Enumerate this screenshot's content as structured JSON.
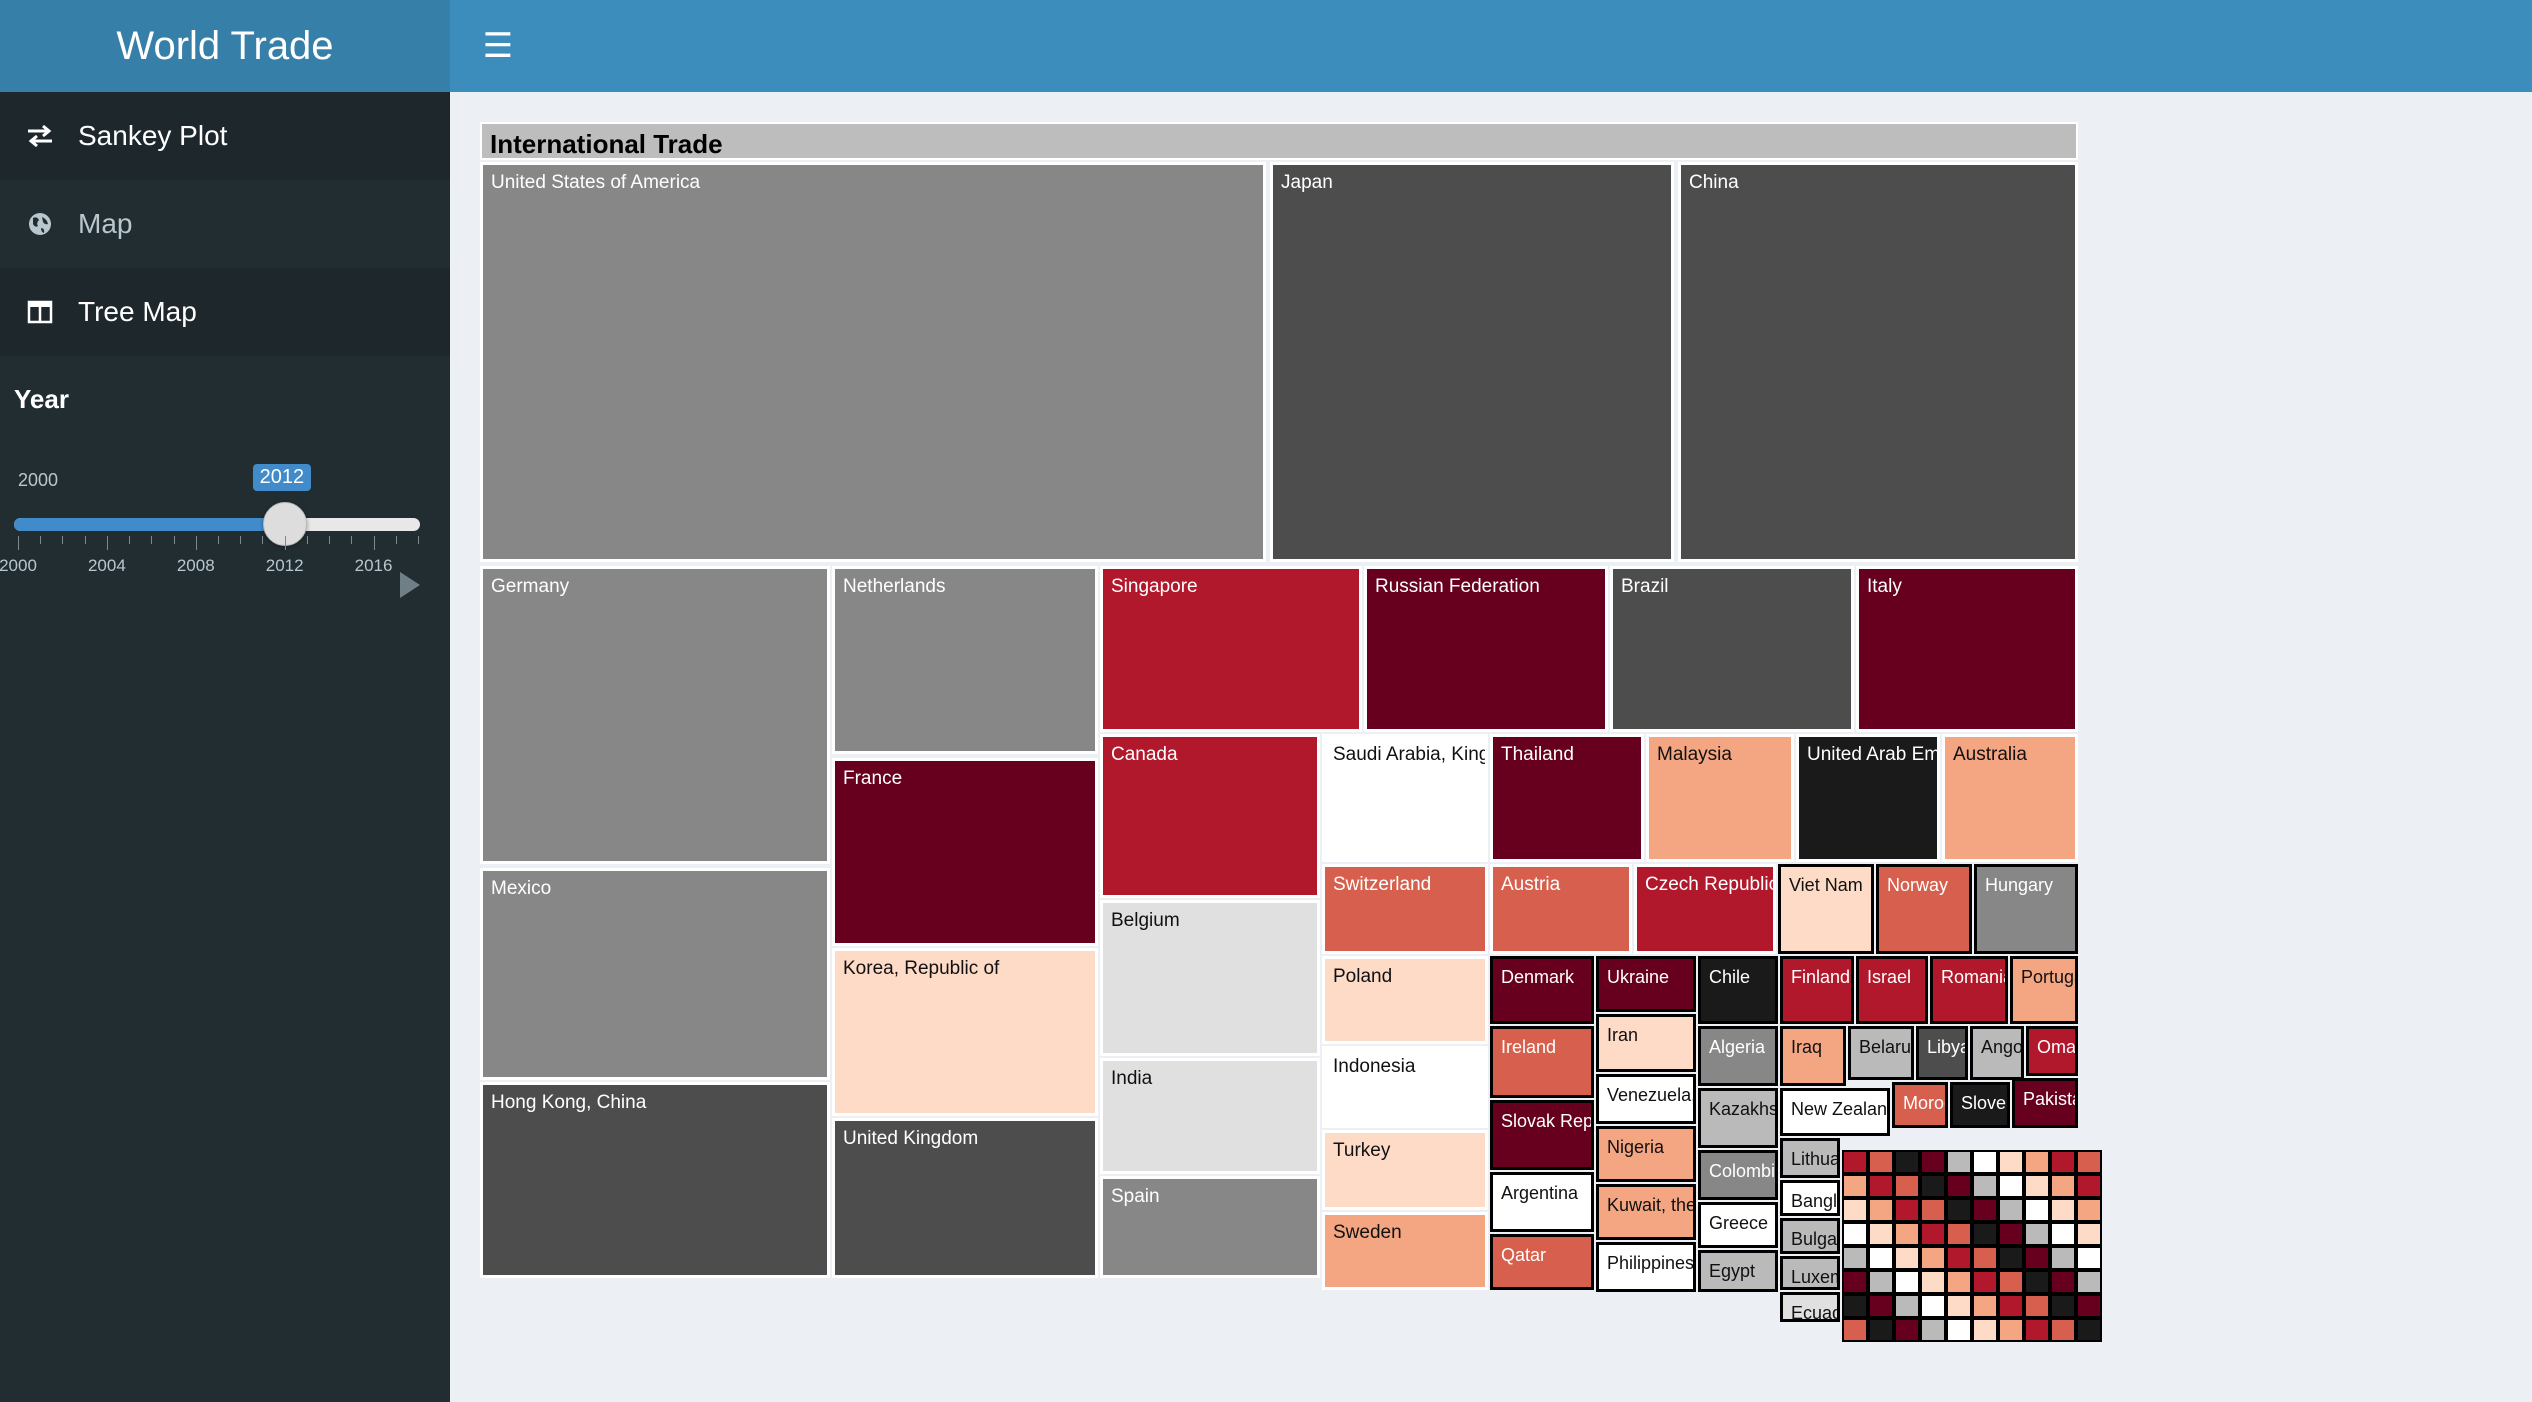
{
  "app": {
    "title": "World Trade"
  },
  "header": {
    "toggle_icon": "hamburger-menu-icon"
  },
  "sidebar": {
    "items": [
      {
        "label": "Sankey Plot",
        "icon": "exchange-arrows-icon",
        "active": true
      },
      {
        "label": "Map",
        "icon": "globe-icon",
        "active": false
      },
      {
        "label": "Tree Map",
        "icon": "columns-icon",
        "active": true
      }
    ]
  },
  "year_slider": {
    "label": "Year",
    "min_label": "2000",
    "value_label": "2012",
    "value": 2012,
    "min": 2000,
    "max": 2018,
    "ticks": [
      "2000",
      "2004",
      "2008",
      "2012",
      "2016"
    ],
    "play_icon": "play-icon"
  },
  "treemap": {
    "title": "International Trade",
    "countries": [
      "United States of America",
      "Japan",
      "China",
      "Germany",
      "Netherlands",
      "Singapore",
      "Russian Federation",
      "Brazil",
      "Italy",
      "France",
      "Canada",
      "Saudi Arabia, Kingdom of",
      "Thailand",
      "Malaysia",
      "United Arab Emirates",
      "Australia",
      "Mexico",
      "Korea, Republic of",
      "Belgium",
      "Switzerland",
      "Austria",
      "Czech Republic",
      "Viet Nam",
      "Norway",
      "Hungary",
      "Poland",
      "Denmark",
      "Ukraine",
      "Chile",
      "Finland",
      "Israel",
      "Romania",
      "Portugal",
      "Hong Kong, China",
      "India",
      "Indonesia",
      "Ireland",
      "Iran",
      "Algeria",
      "Iraq",
      "Belarus",
      "Libya",
      "Angola",
      "Oman",
      "United Kingdom",
      "Turkey",
      "Slovak Republic",
      "Venezuela, Bolivarian Republic of",
      "Kazakhstan",
      "New Zealand",
      "Morocco",
      "Slovenia",
      "Pakistan",
      "Spain",
      "Argentina",
      "Nigeria",
      "Colombia",
      "Lithuania",
      "Bangladesh",
      "Bulgaria",
      "Sweden",
      "Kuwait, the State of",
      "Greece",
      "Luxembourg",
      "Qatar",
      "Philippines",
      "Egypt",
      "Ecuador"
    ],
    "colors": {
      "gray_mid": "#878787",
      "gray_dark": "#4d4d4d",
      "near_black": "#1a1a1a",
      "gray_light": "#e0e0e0",
      "gray_a": "#bababa",
      "white": "#ffffff",
      "maroon": "#67001f",
      "crimson": "#b2182b",
      "red_mid": "#d6604d",
      "salmon": "#f4a582",
      "peach": "#fddbc7"
    }
  }
}
